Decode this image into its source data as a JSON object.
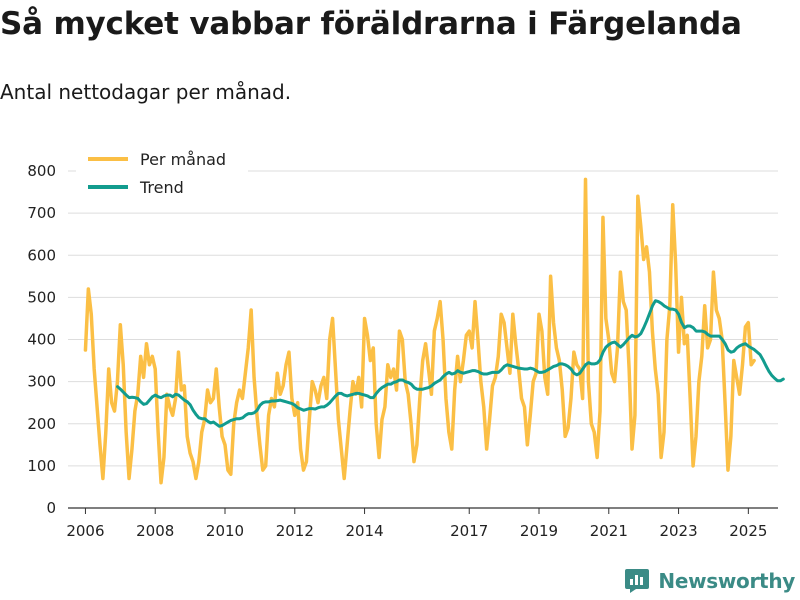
{
  "title": "Så mycket vabbar föräldrarna i Färgelanda",
  "subtitle": "Antal nettodagar per månad.",
  "brand": "Newsworthy",
  "colors": {
    "monthly": "#fbbf45",
    "trend": "#129c8e",
    "grid": "#dddddd",
    "brand": "#3b8b86"
  },
  "chart_data": {
    "type": "line",
    "title": "Så mycket vabbar föräldrarna i Färgelanda",
    "subtitle": "Antal nettodagar per månad.",
    "xlabel": "",
    "ylabel": "",
    "xlim": [
      2005.5,
      2025.85
    ],
    "ylim": [
      0,
      800
    ],
    "yticks": [
      0,
      100,
      200,
      300,
      400,
      500,
      600,
      700,
      800
    ],
    "xticks": [
      2006,
      2008,
      2010,
      2012,
      2014,
      2017,
      2019,
      2021,
      2023,
      2025
    ],
    "grid": true,
    "legend_position": "top-left",
    "series": [
      {
        "name": "Per månad",
        "x_start": 2006.0,
        "x_step": 0.08333,
        "values": [
          375,
          520,
          460,
          330,
          240,
          150,
          70,
          180,
          330,
          250,
          230,
          300,
          435,
          340,
          180,
          70,
          140,
          230,
          270,
          360,
          310,
          390,
          340,
          360,
          330,
          180,
          60,
          120,
          270,
          240,
          220,
          260,
          370,
          280,
          290,
          170,
          130,
          110,
          70,
          110,
          180,
          210,
          280,
          250,
          260,
          330,
          240,
          170,
          150,
          90,
          80,
          200,
          250,
          280,
          260,
          320,
          380,
          470,
          310,
          220,
          150,
          90,
          100,
          220,
          260,
          240,
          320,
          270,
          290,
          340,
          370,
          260,
          220,
          250,
          140,
          90,
          110,
          210,
          300,
          280,
          250,
          290,
          310,
          260,
          400,
          450,
          330,
          210,
          140,
          70,
          150,
          230,
          300,
          270,
          310,
          240,
          450,
          410,
          350,
          380,
          200,
          120,
          210,
          240,
          340,
          310,
          330,
          280,
          420,
          400,
          300,
          270,
          200,
          110,
          150,
          260,
          350,
          390,
          330,
          270,
          420,
          450,
          490,
          400,
          260,
          180,
          140,
          280,
          360,
          300,
          350,
          410,
          420,
          380,
          490,
          400,
          300,
          240,
          140,
          210,
          290,
          310,
          360,
          460,
          440,
          380,
          320,
          460,
          390,
          330,
          260,
          240,
          150,
          220,
          300,
          320,
          460,
          420,
          310,
          270,
          550,
          440,
          380,
          350,
          280,
          170,
          190,
          260,
          370,
          340,
          330,
          260,
          780,
          300,
          200,
          180,
          120,
          230,
          690,
          450,
          400,
          320,
          300,
          380,
          560,
          490,
          470,
          330,
          140,
          220,
          740,
          670,
          590,
          620,
          560,
          420,
          330,
          270,
          120,
          180,
          400,
          480,
          720,
          580,
          370,
          500,
          390,
          410,
          260,
          100,
          170,
          300,
          360,
          480,
          380,
          400,
          560,
          470,
          450,
          400,
          250,
          90,
          170,
          350,
          310,
          270,
          340,
          430,
          440,
          340,
          350
        ]
      },
      {
        "name": "Trend",
        "x_start": 2006.92,
        "x_step": 0.08333,
        "values": [
          288,
          282,
          275,
          268,
          262,
          263,
          262,
          260,
          252,
          246,
          248,
          256,
          264,
          268,
          264,
          262,
          266,
          268,
          268,
          264,
          270,
          268,
          262,
          256,
          252,
          245,
          232,
          222,
          214,
          212,
          212,
          206,
          202,
          204,
          199,
          194,
          196,
          200,
          204,
          208,
          210,
          212,
          212,
          214,
          220,
          224,
          224,
          226,
          232,
          244,
          250,
          252,
          252,
          254,
          254,
          255,
          256,
          254,
          252,
          250,
          248,
          244,
          238,
          235,
          232,
          234,
          236,
          236,
          235,
          238,
          240,
          240,
          244,
          250,
          258,
          266,
          272,
          272,
          268,
          266,
          268,
          270,
          272,
          272,
          270,
          268,
          266,
          262,
          262,
          272,
          280,
          286,
          290,
          294,
          294,
          298,
          300,
          304,
          304,
          300,
          298,
          294,
          286,
          282,
          282,
          282,
          284,
          286,
          290,
          296,
          300,
          304,
          312,
          318,
          322,
          318,
          320,
          326,
          322,
          320,
          322,
          324,
          326,
          326,
          324,
          320,
          318,
          318,
          320,
          322,
          322,
          322,
          328,
          336,
          340,
          338,
          336,
          334,
          332,
          331,
          330,
          330,
          332,
          330,
          326,
          322,
          322,
          324,
          328,
          332,
          336,
          338,
          342,
          342,
          340,
          336,
          330,
          320,
          316,
          320,
          330,
          340,
          345,
          342,
          342,
          344,
          352,
          370,
          382,
          388,
          392,
          394,
          388,
          382,
          388,
          396,
          404,
          410,
          406,
          408,
          414,
          428,
          444,
          462,
          480,
          492,
          490,
          486,
          480,
          476,
          472,
          472,
          470,
          460,
          440,
          428,
          432,
          432,
          428,
          420,
          420,
          420,
          418,
          412,
          408,
          408,
          408,
          408,
          400,
          390,
          375,
          370,
          372,
          380,
          385,
          388,
          390,
          384,
          380,
          376,
          370,
          364,
          352,
          338,
          325,
          315,
          308,
          302,
          302,
          306
        ]
      }
    ]
  }
}
